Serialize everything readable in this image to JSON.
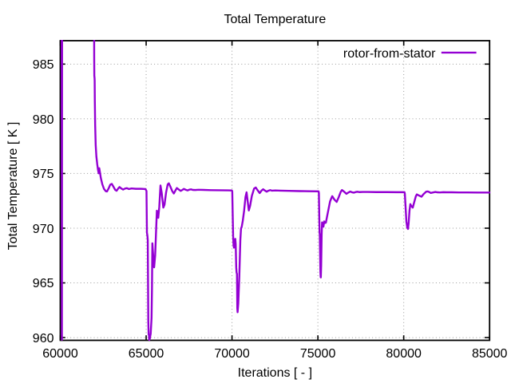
{
  "figure": {
    "title": "Total Temperature",
    "background_color": "#ffffff",
    "text_color": "#000000"
  },
  "legend": {
    "entries": [
      {
        "label": "rotor-from-stator",
        "color": "#9400d3"
      }
    ],
    "position": "top-right-inside"
  },
  "chart_data": {
    "type": "line",
    "title": "Total Temperature",
    "xlabel": "Iterations [ - ]",
    "ylabel": "Total Temperature [ K ]",
    "xlim": [
      60000,
      85000
    ],
    "ylim": [
      959.75,
      987.14
    ],
    "x_ticks": [
      60000,
      65000,
      70000,
      75000,
      80000,
      85000
    ],
    "y_ticks": [
      960,
      965,
      970,
      975,
      980,
      985
    ],
    "grid": true,
    "grid_style": "dotted",
    "legend_position": "top-right",
    "series": [
      {
        "name": "rotor-from-stator",
        "color": "#9400d3",
        "points": [
          [
            60078,
            1000
          ],
          [
            60095,
            959.8
          ],
          [
            60110,
            1000
          ],
          [
            61955,
            1000
          ],
          [
            61975,
            985.5
          ],
          [
            61982,
            983.95
          ],
          [
            61996,
            983.72
          ],
          [
            62002,
            983.5
          ],
          [
            62012,
            981.6
          ],
          [
            62032,
            979.4
          ],
          [
            62062,
            977.6
          ],
          [
            62102,
            976.55
          ],
          [
            62152,
            975.85
          ],
          [
            62200,
            975.3
          ],
          [
            62235,
            975.02
          ],
          [
            62270,
            975.48
          ],
          [
            62305,
            975.15
          ],
          [
            62360,
            974.6
          ],
          [
            62450,
            974.0
          ],
          [
            62550,
            973.58
          ],
          [
            62650,
            973.38
          ],
          [
            62720,
            973.36
          ],
          [
            62810,
            973.62
          ],
          [
            62910,
            973.98
          ],
          [
            63000,
            974.05
          ],
          [
            63100,
            973.78
          ],
          [
            63200,
            973.5
          ],
          [
            63280,
            973.42
          ],
          [
            63370,
            973.62
          ],
          [
            63450,
            973.76
          ],
          [
            63560,
            973.62
          ],
          [
            63660,
            973.53
          ],
          [
            63770,
            973.62
          ],
          [
            63880,
            973.66
          ],
          [
            63990,
            973.58
          ],
          [
            64150,
            973.63
          ],
          [
            64400,
            973.6
          ],
          [
            64700,
            973.6
          ],
          [
            64960,
            973.58
          ],
          [
            65020,
            973.4
          ],
          [
            65045,
            969.6
          ],
          [
            65075,
            969.3
          ],
          [
            65095,
            968.9
          ],
          [
            65125,
            961.5
          ],
          [
            65145,
            960.28
          ],
          [
            65165,
            960.2
          ],
          [
            65180,
            959.78
          ],
          [
            65215,
            959.92
          ],
          [
            65265,
            960.35
          ],
          [
            65315,
            961.8
          ],
          [
            65340,
            964.5
          ],
          [
            65362,
            968.62
          ],
          [
            65410,
            967.5
          ],
          [
            65465,
            966.42
          ],
          [
            65525,
            967.5
          ],
          [
            65575,
            969.6
          ],
          [
            65625,
            971.6
          ],
          [
            65670,
            971.15
          ],
          [
            65705,
            970.95
          ],
          [
            65765,
            971.95
          ],
          [
            65835,
            973.9
          ],
          [
            65905,
            973.25
          ],
          [
            66000,
            971.88
          ],
          [
            66070,
            972.15
          ],
          [
            66160,
            973.25
          ],
          [
            66255,
            974.0
          ],
          [
            66320,
            974.1
          ],
          [
            66410,
            973.8
          ],
          [
            66510,
            973.42
          ],
          [
            66610,
            973.17
          ],
          [
            66710,
            973.46
          ],
          [
            66790,
            973.67
          ],
          [
            66905,
            973.53
          ],
          [
            67015,
            973.41
          ],
          [
            67110,
            973.5
          ],
          [
            67195,
            973.59
          ],
          [
            67310,
            973.51
          ],
          [
            67410,
            973.45
          ],
          [
            67510,
            973.52
          ],
          [
            67615,
            973.55
          ],
          [
            67715,
            973.5
          ],
          [
            67860,
            973.49
          ],
          [
            68050,
            973.51
          ],
          [
            68350,
            973.5
          ],
          [
            68750,
            973.48
          ],
          [
            69250,
            973.47
          ],
          [
            69750,
            973.46
          ],
          [
            69995,
            973.45
          ],
          [
            70015,
            973.35
          ],
          [
            70040,
            971.3
          ],
          [
            70065,
            969.3
          ],
          [
            70090,
            968.4
          ],
          [
            70115,
            968.22
          ],
          [
            70155,
            968.85
          ],
          [
            70190,
            969.02
          ],
          [
            70215,
            968.55
          ],
          [
            70245,
            966.4
          ],
          [
            70268,
            965.92
          ],
          [
            70288,
            965.83
          ],
          [
            70308,
            962.7
          ],
          [
            70325,
            962.32
          ],
          [
            70365,
            963.1
          ],
          [
            70425,
            965.6
          ],
          [
            70485,
            968.9
          ],
          [
            70525,
            969.98
          ],
          [
            70565,
            970.12
          ],
          [
            70625,
            970.65
          ],
          [
            70705,
            971.6
          ],
          [
            70785,
            972.85
          ],
          [
            70848,
            973.28
          ],
          [
            70905,
            972.55
          ],
          [
            70978,
            971.62
          ],
          [
            71055,
            972.05
          ],
          [
            71155,
            972.95
          ],
          [
            71285,
            973.62
          ],
          [
            71380,
            973.72
          ],
          [
            71475,
            973.5
          ],
          [
            71615,
            973.21
          ],
          [
            71715,
            973.43
          ],
          [
            71815,
            973.56
          ],
          [
            71915,
            973.44
          ],
          [
            72020,
            973.34
          ],
          [
            72125,
            973.43
          ],
          [
            72225,
            973.48
          ],
          [
            72330,
            973.43
          ],
          [
            72520,
            973.45
          ],
          [
            72820,
            973.43
          ],
          [
            73320,
            973.41
          ],
          [
            73920,
            973.39
          ],
          [
            74520,
            973.38
          ],
          [
            75040,
            973.37
          ],
          [
            75060,
            973.2
          ],
          [
            75080,
            971.2
          ],
          [
            75098,
            969.6
          ],
          [
            75112,
            969.42
          ],
          [
            75128,
            967.8
          ],
          [
            75148,
            966.0
          ],
          [
            75163,
            965.52
          ],
          [
            75172,
            965.5
          ],
          [
            75192,
            966.6
          ],
          [
            75220,
            969.4
          ],
          [
            75245,
            970.53
          ],
          [
            75285,
            970.32
          ],
          [
            75325,
            970.14
          ],
          [
            75365,
            970.62
          ],
          [
            75410,
            970.48
          ],
          [
            75465,
            970.5
          ],
          [
            75565,
            971.3
          ],
          [
            75710,
            972.45
          ],
          [
            75835,
            972.93
          ],
          [
            75960,
            972.62
          ],
          [
            76095,
            972.4
          ],
          [
            76210,
            972.82
          ],
          [
            76330,
            973.32
          ],
          [
            76405,
            973.49
          ],
          [
            76510,
            973.36
          ],
          [
            76665,
            973.14
          ],
          [
            76775,
            973.26
          ],
          [
            76885,
            973.35
          ],
          [
            76995,
            973.28
          ],
          [
            77095,
            973.25
          ],
          [
            77195,
            973.3
          ],
          [
            77295,
            973.33
          ],
          [
            77410,
            973.3
          ],
          [
            77610,
            973.31
          ],
          [
            77910,
            973.31
          ],
          [
            78410,
            973.3
          ],
          [
            79010,
            973.3
          ],
          [
            79610,
            973.29
          ],
          [
            80045,
            973.29
          ],
          [
            80065,
            973.15
          ],
          [
            80105,
            972.0
          ],
          [
            80155,
            970.6
          ],
          [
            80205,
            970.05
          ],
          [
            80248,
            969.93
          ],
          [
            80285,
            970.45
          ],
          [
            80335,
            971.6
          ],
          [
            80385,
            972.2
          ],
          [
            80435,
            972.04
          ],
          [
            80525,
            971.88
          ],
          [
            80605,
            972.35
          ],
          [
            80705,
            972.92
          ],
          [
            80765,
            973.09
          ],
          [
            80855,
            973.01
          ],
          [
            81035,
            972.88
          ],
          [
            81155,
            973.12
          ],
          [
            81305,
            973.34
          ],
          [
            81405,
            973.36
          ],
          [
            81505,
            973.29
          ],
          [
            81575,
            973.22
          ],
          [
            81705,
            973.27
          ],
          [
            81845,
            973.31
          ],
          [
            81955,
            973.28
          ],
          [
            82105,
            973.27
          ],
          [
            82305,
            973.29
          ],
          [
            82505,
            973.28
          ],
          [
            82805,
            973.28
          ],
          [
            83205,
            973.27
          ],
          [
            83705,
            973.27
          ],
          [
            84305,
            973.26
          ],
          [
            85000,
            973.26
          ]
        ]
      }
    ]
  },
  "style": {
    "line_color": "#9400d3",
    "line_width": 2.4,
    "border_color": "#000000",
    "grid_color": "#9a9a9a",
    "tick_color": "#000000"
  }
}
